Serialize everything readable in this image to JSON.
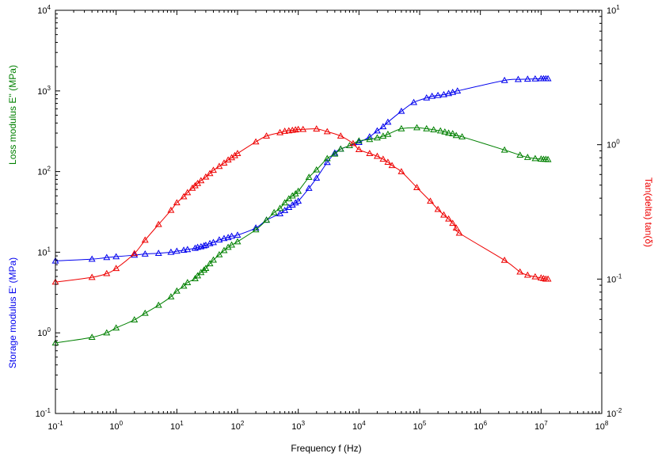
{
  "chart_data": {
    "type": "scatter",
    "xlabel": "Frequency f (Hz)",
    "ylabel_left_top": "Loss modulus E'' (MPa)",
    "ylabel_left_bottom": "Storage modulus E' (MPa)",
    "ylabel_right": "Tan(delta) tan(δ)",
    "xscale": "log",
    "yscale_left": "log",
    "yscale_right": "log",
    "xlim": [
      0.1,
      100000000
    ],
    "ylim_left": [
      0.1,
      10000
    ],
    "ylim_right": [
      0.01,
      10
    ],
    "grid": false,
    "x_ticks": [
      {
        "base": "10",
        "exp": "-1"
      },
      {
        "base": "10",
        "exp": "0"
      },
      {
        "base": "10",
        "exp": "1"
      },
      {
        "base": "10",
        "exp": "2"
      },
      {
        "base": "10",
        "exp": "3"
      },
      {
        "base": "10",
        "exp": "4"
      },
      {
        "base": "10",
        "exp": "5"
      },
      {
        "base": "10",
        "exp": "6"
      },
      {
        "base": "10",
        "exp": "7"
      },
      {
        "base": "10",
        "exp": "8"
      }
    ],
    "y_left_ticks": [
      {
        "base": "10",
        "exp": "-1"
      },
      {
        "base": "10",
        "exp": "0"
      },
      {
        "base": "10",
        "exp": "1"
      },
      {
        "base": "10",
        "exp": "2"
      },
      {
        "base": "10",
        "exp": "3"
      },
      {
        "base": "10",
        "exp": "4"
      }
    ],
    "y_right_ticks": [
      {
        "base": "10",
        "exp": "-2"
      },
      {
        "base": "10",
        "exp": "-1"
      },
      {
        "base": "10",
        "exp": "0"
      },
      {
        "base": "10",
        "exp": "1"
      }
    ],
    "series": [
      {
        "name": "Storage modulus E'",
        "axis": "left",
        "color": "#0000ee",
        "marker": "triangle",
        "x": [
          0.1,
          0.4,
          0.7,
          1,
          2,
          3,
          5,
          8,
          10,
          13,
          15,
          20,
          22,
          25,
          28,
          30,
          35,
          40,
          50,
          60,
          70,
          80,
          100,
          200,
          300,
          500,
          600,
          700,
          800,
          900,
          1000,
          1500,
          2000,
          3000,
          4000,
          5000,
          10000,
          15000,
          20000,
          25000,
          30000,
          50000,
          80000,
          130000,
          160000,
          200000,
          250000,
          300000,
          350000,
          420000,
          2500000,
          4200000,
          6000000,
          8000000,
          10000000,
          11000000,
          12000000,
          13000000
        ],
        "y": [
          7.8,
          8.2,
          8.6,
          8.8,
          9.2,
          9.5,
          9.7,
          10.0,
          10.3,
          10.6,
          10.8,
          11.2,
          11.5,
          11.7,
          12.0,
          12.2,
          12.8,
          13.2,
          14.2,
          14.8,
          15.2,
          15.8,
          16.3,
          20.0,
          25.0,
          30.0,
          33.0,
          36.0,
          38.5,
          41.0,
          43.0,
          62.0,
          83.0,
          130.0,
          170.0,
          190.0,
          230.0,
          270.0,
          320.0,
          360.0,
          410.0,
          560.0,
          720.0,
          820.0,
          860.0,
          880.0,
          900.0,
          930.0,
          960.0,
          1000.0,
          1350.0,
          1390.0,
          1400.0,
          1410.0,
          1420.0,
          1420.0,
          1420.0,
          1420.0
        ]
      },
      {
        "name": "Loss modulus E''",
        "axis": "left",
        "color": "#008000",
        "marker": "triangle",
        "x": [
          0.1,
          0.4,
          0.7,
          1,
          2,
          3,
          5,
          8,
          10,
          13,
          15,
          20,
          22,
          25,
          28,
          30,
          35,
          40,
          50,
          60,
          70,
          80,
          100,
          200,
          300,
          400,
          500,
          600,
          700,
          800,
          900,
          1000,
          1500,
          2000,
          3000,
          4000,
          5000,
          7000,
          10000,
          15000,
          20000,
          25000,
          30000,
          50000,
          90000,
          130000,
          170000,
          220000,
          260000,
          300000,
          350000,
          400000,
          500000,
          2500000,
          4500000,
          6000000,
          8000000,
          10000000,
          11000000,
          12000000,
          13000000
        ],
        "y": [
          0.75,
          0.88,
          1.0,
          1.15,
          1.45,
          1.75,
          2.2,
          2.8,
          3.3,
          3.8,
          4.2,
          4.7,
          5.1,
          5.6,
          6.0,
          6.3,
          7.2,
          8.0,
          9.3,
          10.5,
          11.5,
          12.3,
          13.5,
          19.0,
          25.0,
          31.0,
          35.0,
          41.0,
          46.0,
          50.0,
          53.0,
          57.0,
          85.0,
          105.0,
          145.0,
          165.0,
          190.0,
          210.0,
          240.0,
          250.0,
          262.0,
          275.0,
          290.0,
          340.0,
          350.0,
          340.0,
          330.0,
          320.0,
          310.0,
          300.0,
          295.0,
          280.0,
          270.0,
          185.0,
          160.0,
          150.0,
          145.0,
          143.0,
          142.0,
          142.0,
          141.0
        ]
      },
      {
        "name": "Tan(delta) tan(δ)",
        "axis": "right",
        "color": "#ee0000",
        "marker": "triangle",
        "x": [
          0.1,
          0.4,
          0.7,
          1,
          2,
          3,
          5,
          8,
          10,
          13,
          15,
          18,
          20,
          22,
          25,
          30,
          35,
          40,
          50,
          60,
          70,
          80,
          90,
          100,
          200,
          300,
          500,
          600,
          700,
          800,
          900,
          1000,
          1200,
          2000,
          3000,
          5000,
          8000,
          10000,
          15000,
          20000,
          25000,
          30000,
          35000,
          50000,
          90000,
          150000,
          200000,
          250000,
          300000,
          350000,
          400000,
          450000,
          2500000,
          4500000,
          6000000,
          8000000,
          10000000,
          11000000,
          12000000,
          13000000
        ],
        "y": [
          0.095,
          0.103,
          0.11,
          0.12,
          0.155,
          0.195,
          0.255,
          0.325,
          0.37,
          0.41,
          0.44,
          0.475,
          0.495,
          0.515,
          0.54,
          0.575,
          0.61,
          0.645,
          0.69,
          0.73,
          0.77,
          0.8,
          0.83,
          0.86,
          1.05,
          1.16,
          1.23,
          1.26,
          1.27,
          1.28,
          1.29,
          1.3,
          1.3,
          1.31,
          1.25,
          1.16,
          1.02,
          0.92,
          0.86,
          0.82,
          0.78,
          0.74,
          0.7,
          0.63,
          0.48,
          0.38,
          0.33,
          0.3,
          0.28,
          0.26,
          0.24,
          0.22,
          0.138,
          0.113,
          0.107,
          0.104,
          0.102,
          0.101,
          0.1,
          0.1
        ]
      }
    ]
  }
}
